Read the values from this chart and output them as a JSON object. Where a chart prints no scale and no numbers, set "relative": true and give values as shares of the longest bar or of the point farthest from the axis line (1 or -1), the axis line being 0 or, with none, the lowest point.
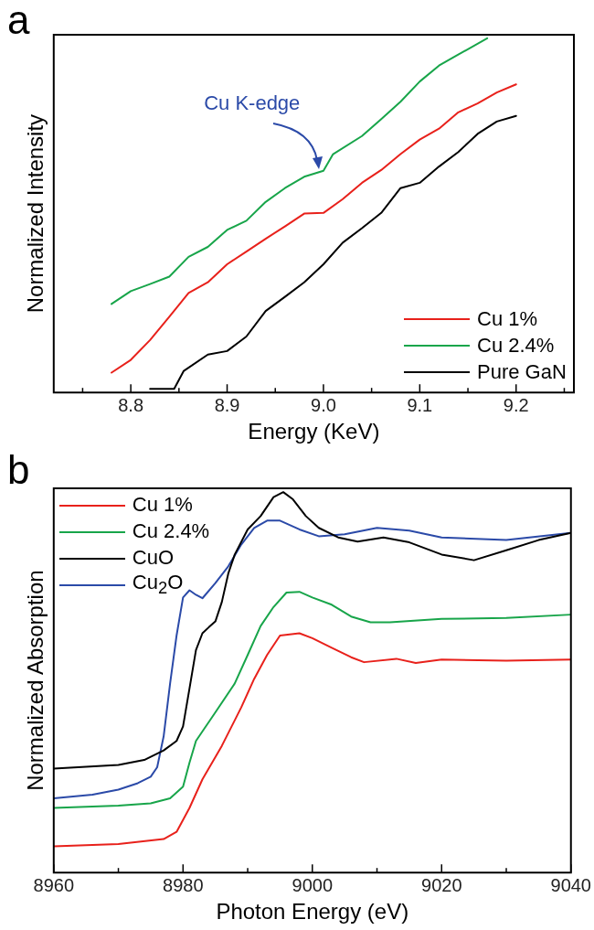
{
  "chart_data": [
    {
      "type": "line",
      "xlabel": "Energy (KeV)",
      "ylabel": "Normalized Intensity",
      "relative": true,
      "xlim": [
        8.72,
        9.26
      ],
      "xticks": [
        {
          "value": 8.75,
          "label": null
        },
        8.8,
        {
          "value": 8.85,
          "label": null
        },
        8.9,
        {
          "value": 8.95,
          "label": null
        },
        {
          "value": 9,
          "label": "9.0"
        },
        {
          "value": 9.05,
          "label": null
        },
        9.1,
        {
          "value": 9.15,
          "label": null
        },
        9.2,
        {
          "value": 9.25,
          "label": null
        }
      ],
      "tick_labels": "x",
      "grid": false,
      "legend": "bottom right",
      "marker": "none",
      "annotations": [
        "a",
        {
          "text": "Cu K-edge",
          "x": 8.995,
          "y": 0.63
        }
      ],
      "series": [
        {
          "name": "Cu 1%",
          "color": "#e8211b",
          "x": [
            8.78,
            8.8,
            8.82,
            8.84,
            8.86,
            8.88,
            8.9,
            8.92,
            8.94,
            8.96,
            8.98,
            9.0,
            9.02,
            9.04,
            9.06,
            9.08,
            9.1,
            9.12,
            9.14,
            9.16,
            9.18,
            9.2
          ],
          "values": [
            0.056,
            0.092,
            0.148,
            0.214,
            0.281,
            0.311,
            0.362,
            0.398,
            0.434,
            0.469,
            0.505,
            0.507,
            0.546,
            0.592,
            0.628,
            0.673,
            0.714,
            0.745,
            0.791,
            0.816,
            0.847,
            0.87
          ]
        },
        {
          "name": "Cu 2.4%",
          "color": "#18a54a",
          "x": [
            8.78,
            8.8,
            8.82,
            8.84,
            8.86,
            8.88,
            8.9,
            8.92,
            8.94,
            8.96,
            8.98,
            9.0,
            9.01,
            9.04,
            9.06,
            9.08,
            9.1,
            9.12,
            9.14,
            9.17
          ],
          "values": [
            0.25,
            0.286,
            0.306,
            0.327,
            0.383,
            0.411,
            0.459,
            0.485,
            0.538,
            0.577,
            0.609,
            0.626,
            0.673,
            0.724,
            0.772,
            0.821,
            0.878,
            0.923,
            0.954,
            1
          ]
        },
        {
          "name": "Pure GaN",
          "color": "#000000",
          "x": [
            8.82,
            8.845,
            8.855,
            8.88,
            8.9,
            8.92,
            8.94,
            8.96,
            8.98,
            9.0,
            9.02,
            9.04,
            9.06,
            9.08,
            9.1,
            9.12,
            9.14,
            9.16,
            9.18,
            9.2
          ],
          "values": [
            0.01,
            0.01,
            0.061,
            0.107,
            0.117,
            0.158,
            0.23,
            0.27,
            0.311,
            0.362,
            0.423,
            0.464,
            0.507,
            0.577,
            0.592,
            0.638,
            0.679,
            0.73,
            0.765,
            0.781
          ]
        }
      ]
    },
    {
      "type": "line",
      "xlabel": "Photon Energy (eV)",
      "ylabel": "Normalized Absorption",
      "relative": true,
      "xlim": [
        8960,
        9040
      ],
      "xticks": [
        8960,
        {
          "value": 8970,
          "label": null
        },
        8980,
        {
          "value": 8990,
          "label": null
        },
        9000,
        {
          "value": 9010,
          "label": null
        },
        9020,
        {
          "value": 9030,
          "label": null
        },
        9040
      ],
      "tick_labels": "x",
      "grid": false,
      "legend": "top left",
      "marker": "none",
      "annotations": [
        "b"
      ],
      "series": [
        {
          "name": "Cu 1%",
          "color": "#e8211b",
          "x": [
            8960,
            8970,
            8977,
            8979,
            8981,
            8983,
            8986,
            8989,
            8991,
            8993,
            8995,
            8998,
            9000,
            9003,
            9006,
            9008,
            9013,
            9016,
            9020,
            9030,
            9040
          ],
          "values": [
            0.069,
            0.075,
            0.088,
            0.107,
            0.17,
            0.245,
            0.333,
            0.434,
            0.509,
            0.572,
            0.623,
            0.629,
            0.616,
            0.591,
            0.566,
            0.553,
            0.562,
            0.551,
            0.56,
            0.557,
            0.56
          ]
        },
        {
          "name": "Cu 2.4%",
          "color": "#18a54a",
          "x": [
            8960,
            8970,
            8975,
            8978,
            8980,
            8981,
            8982,
            8985,
            8988,
            8990,
            8992,
            8994,
            8996,
            8998,
            9000,
            9003,
            9006,
            9009,
            9012,
            9020,
            9030,
            9040
          ],
          "values": [
            0.17,
            0.176,
            0.182,
            0.195,
            0.226,
            0.289,
            0.346,
            0.421,
            0.497,
            0.572,
            0.648,
            0.698,
            0.736,
            0.738,
            0.723,
            0.704,
            0.673,
            0.658,
            0.658,
            0.667,
            0.669,
            0.678
          ]
        },
        {
          "name": "CuO",
          "color": "#000000",
          "x": [
            8960,
            8970,
            8974,
            8977,
            8979,
            8980,
            8981,
            8982,
            8983,
            8984,
            8985,
            8986,
            8987,
            8988,
            8990,
            8992,
            8994,
            8995.5,
            8997,
            8999,
            9001,
            9004,
            9007,
            9011,
            9015,
            9020,
            9025,
            9030,
            9035,
            9040
          ],
          "values": [
            0.273,
            0.283,
            0.296,
            0.321,
            0.346,
            0.384,
            0.484,
            0.585,
            0.629,
            0.645,
            0.66,
            0.711,
            0.786,
            0.836,
            0.902,
            0.937,
            0.987,
            1,
            0.981,
            0.937,
            0.906,
            0.881,
            0.87,
            0.881,
            0.868,
            0.836,
            0.821,
            0.847,
            0.874,
            0.893
          ]
        },
        {
          "name": "Cu$_{2}$O",
          "color": "#2b4aa8",
          "x": [
            8960,
            8966,
            8970,
            8973,
            8975,
            8976,
            8977,
            8978,
            8979,
            8980,
            8981,
            8982,
            8983,
            8985,
            8987,
            8989,
            8991,
            8993,
            8995,
            8998,
            9001,
            9005,
            9010,
            9015,
            9020,
            9030,
            9040
          ],
          "values": [
            0.195,
            0.205,
            0.218,
            0.235,
            0.252,
            0.277,
            0.358,
            0.497,
            0.623,
            0.723,
            0.742,
            0.73,
            0.721,
            0.761,
            0.805,
            0.862,
            0.906,
            0.925,
            0.925,
            0.902,
            0.884,
            0.889,
            0.906,
            0.899,
            0.881,
            0.874,
            0.893
          ]
        }
      ]
    }
  ]
}
